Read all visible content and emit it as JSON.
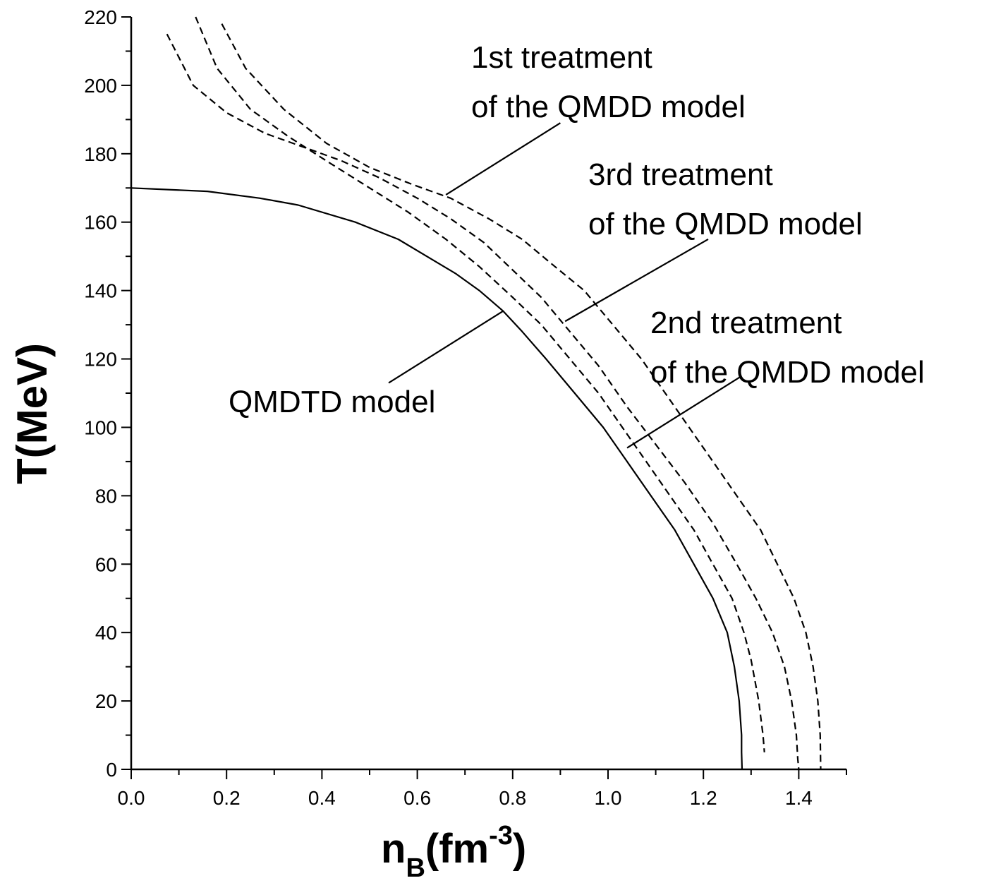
{
  "chart_data": {
    "type": "line",
    "xlabel": {
      "main": "n",
      "sub": "B",
      "rest": "(fm",
      "sup": "-3",
      "close": ")"
    },
    "ylabel": "T(MeV)",
    "xlim": [
      0,
      1.5
    ],
    "ylim": [
      0,
      220
    ],
    "x_ticks": [
      "0.0",
      "0.2",
      "0.4",
      "0.6",
      "0.8",
      "1.0",
      "1.2",
      "1.4"
    ],
    "y_ticks": [
      "0",
      "20",
      "40",
      "60",
      "80",
      "100",
      "120",
      "140",
      "160",
      "180",
      "200",
      "220"
    ],
    "grid": false,
    "series": [
      {
        "name": "QMDTD model",
        "style": "solid",
        "points": [
          [
            0.0,
            170
          ],
          [
            0.16,
            169
          ],
          [
            0.27,
            167
          ],
          [
            0.35,
            165
          ],
          [
            0.47,
            160
          ],
          [
            0.56,
            155
          ],
          [
            0.62,
            150
          ],
          [
            0.68,
            145
          ],
          [
            0.73,
            140
          ],
          [
            0.78,
            134
          ],
          [
            0.82,
            128
          ],
          [
            0.87,
            120
          ],
          [
            0.93,
            110
          ],
          [
            0.99,
            100
          ],
          [
            1.04,
            90
          ],
          [
            1.09,
            80
          ],
          [
            1.14,
            70
          ],
          [
            1.18,
            60
          ],
          [
            1.22,
            50
          ],
          [
            1.25,
            40
          ],
          [
            1.265,
            30
          ],
          [
            1.275,
            20
          ],
          [
            1.28,
            10
          ],
          [
            1.28,
            5
          ],
          [
            1.281,
            0
          ]
        ]
      },
      {
        "name": "3rd treatment of the QMDD model",
        "style": "dashed",
        "points": [
          [
            0.135,
            220
          ],
          [
            0.18,
            205
          ],
          [
            0.25,
            193
          ],
          [
            0.33,
            185
          ],
          [
            0.42,
            177
          ],
          [
            0.5,
            170
          ],
          [
            0.58,
            163
          ],
          [
            0.66,
            155
          ],
          [
            0.73,
            147
          ],
          [
            0.8,
            138
          ],
          [
            0.86,
            130
          ],
          [
            0.92,
            120
          ],
          [
            0.98,
            110
          ],
          [
            1.03,
            100
          ],
          [
            1.08,
            90
          ],
          [
            1.13,
            80
          ],
          [
            1.18,
            70
          ],
          [
            1.22,
            60
          ],
          [
            1.26,
            50
          ],
          [
            1.285,
            40
          ],
          [
            1.3,
            32
          ],
          [
            1.316,
            20
          ],
          [
            1.325,
            10
          ],
          [
            1.328,
            5
          ]
        ]
      },
      {
        "name": "2nd treatment of the QMDD model",
        "style": "dashed",
        "points": [
          [
            0.075,
            215
          ],
          [
            0.13,
            200
          ],
          [
            0.2,
            192
          ],
          [
            0.28,
            186
          ],
          [
            0.36,
            182
          ],
          [
            0.44,
            178
          ],
          [
            0.52,
            173
          ],
          [
            0.6,
            167
          ],
          [
            0.67,
            161
          ],
          [
            0.74,
            154
          ],
          [
            0.8,
            146
          ],
          [
            0.86,
            138
          ],
          [
            0.92,
            128
          ],
          [
            0.98,
            118
          ],
          [
            1.04,
            106
          ],
          [
            1.1,
            95
          ],
          [
            1.16,
            84
          ],
          [
            1.22,
            72
          ],
          [
            1.27,
            60
          ],
          [
            1.31,
            50
          ],
          [
            1.345,
            40
          ],
          [
            1.37,
            30
          ],
          [
            1.385,
            20
          ],
          [
            1.395,
            10
          ],
          [
            1.398,
            3
          ],
          [
            1.4,
            0
          ]
        ]
      },
      {
        "name": "1st treatment of the QMDD model",
        "style": "dashed",
        "points": [
          [
            0.19,
            218
          ],
          [
            0.24,
            205
          ],
          [
            0.32,
            193
          ],
          [
            0.41,
            183
          ],
          [
            0.5,
            176
          ],
          [
            0.59,
            171
          ],
          [
            0.67,
            167
          ],
          [
            0.75,
            161
          ],
          [
            0.82,
            155
          ],
          [
            0.88,
            148
          ],
          [
            0.95,
            140
          ],
          [
            1.01,
            130
          ],
          [
            1.07,
            120
          ],
          [
            1.12,
            110
          ],
          [
            1.17,
            100
          ],
          [
            1.22,
            90
          ],
          [
            1.27,
            80
          ],
          [
            1.32,
            70
          ],
          [
            1.355,
            60
          ],
          [
            1.39,
            50
          ],
          [
            1.415,
            40
          ],
          [
            1.43,
            30
          ],
          [
            1.44,
            20
          ],
          [
            1.445,
            10
          ],
          [
            1.446,
            0
          ]
        ]
      }
    ],
    "annotations": [
      {
        "lines": [
          "1st treatment",
          "of the QMDD model"
        ],
        "pointer": {
          "from": [
            0.9,
            189
          ],
          "to": [
            0.66,
            168
          ]
        }
      },
      {
        "lines": [
          "3rd treatment",
          "of the QMDD model"
        ],
        "pointer": {
          "from": [
            1.21,
            155
          ],
          "to": [
            0.91,
            131
          ]
        }
      },
      {
        "lines": [
          "2nd treatment",
          "of the QMDD model"
        ],
        "pointer": {
          "from": [
            1.28,
            115
          ],
          "to": [
            1.04,
            94
          ]
        }
      },
      {
        "lines": [
          "QMDTD model"
        ],
        "pointer": {
          "from": [
            0.54,
            113
          ],
          "to": [
            0.78,
            134
          ]
        }
      }
    ]
  }
}
